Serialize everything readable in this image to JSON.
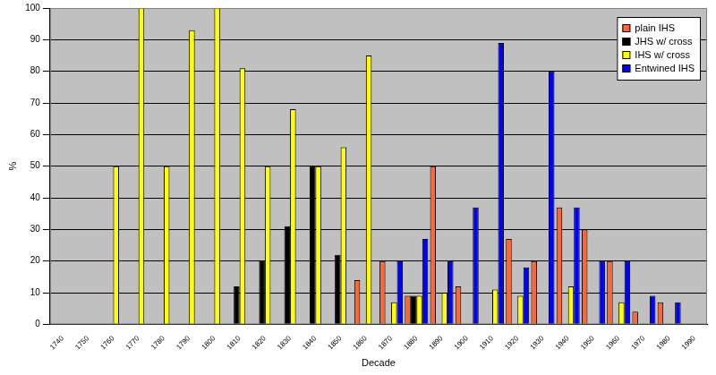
{
  "chart_data": {
    "type": "bar",
    "x_label": "Decade",
    "y_label": "%",
    "categories": [
      "1740",
      "1750",
      "1760",
      "1770",
      "1780",
      "1790",
      "1800",
      "1810",
      "1820",
      "1830",
      "1840",
      "1850",
      "1860",
      "1870",
      "1880",
      "1890",
      "1900",
      "1910",
      "1920",
      "1930",
      "1940",
      "1950",
      "1960",
      "1970",
      "1980",
      "1990"
    ],
    "series": [
      {
        "name": "plain IHS",
        "color": "#ff6633",
        "values": [
          null,
          null,
          null,
          null,
          null,
          null,
          null,
          null,
          null,
          null,
          null,
          null,
          14,
          20,
          9,
          50,
          12,
          null,
          27,
          20,
          37,
          30,
          20,
          4,
          7,
          null
        ]
      },
      {
        "name": "JHS w/ cross",
        "color": "#000000",
        "values": [
          null,
          null,
          null,
          null,
          null,
          null,
          null,
          12,
          20,
          31,
          50,
          22,
          null,
          null,
          9,
          null,
          null,
          null,
          null,
          null,
          null,
          null,
          null,
          null,
          null,
          null
        ]
      },
      {
        "name": "IHS w/ cross",
        "color": "#ffff00",
        "values": [
          null,
          null,
          50,
          100,
          50,
          93,
          100,
          81,
          50,
          68,
          50,
          56,
          85,
          7,
          9,
          10,
          null,
          11,
          9,
          null,
          12,
          null,
          7,
          null,
          null,
          null
        ]
      },
      {
        "name": "Entwined IHS",
        "color": "#0000ff",
        "values": [
          null,
          null,
          null,
          null,
          null,
          null,
          null,
          null,
          null,
          null,
          null,
          null,
          null,
          20,
          27,
          20,
          37,
          89,
          18,
          80,
          37,
          20,
          20,
          9,
          7,
          null
        ]
      }
    ],
    "ylim": [
      0,
      100
    ],
    "yticks": [
      0,
      10,
      20,
      30,
      40,
      50,
      60,
      70,
      80,
      90,
      100
    ],
    "grid": true,
    "legend": "upper right"
  }
}
